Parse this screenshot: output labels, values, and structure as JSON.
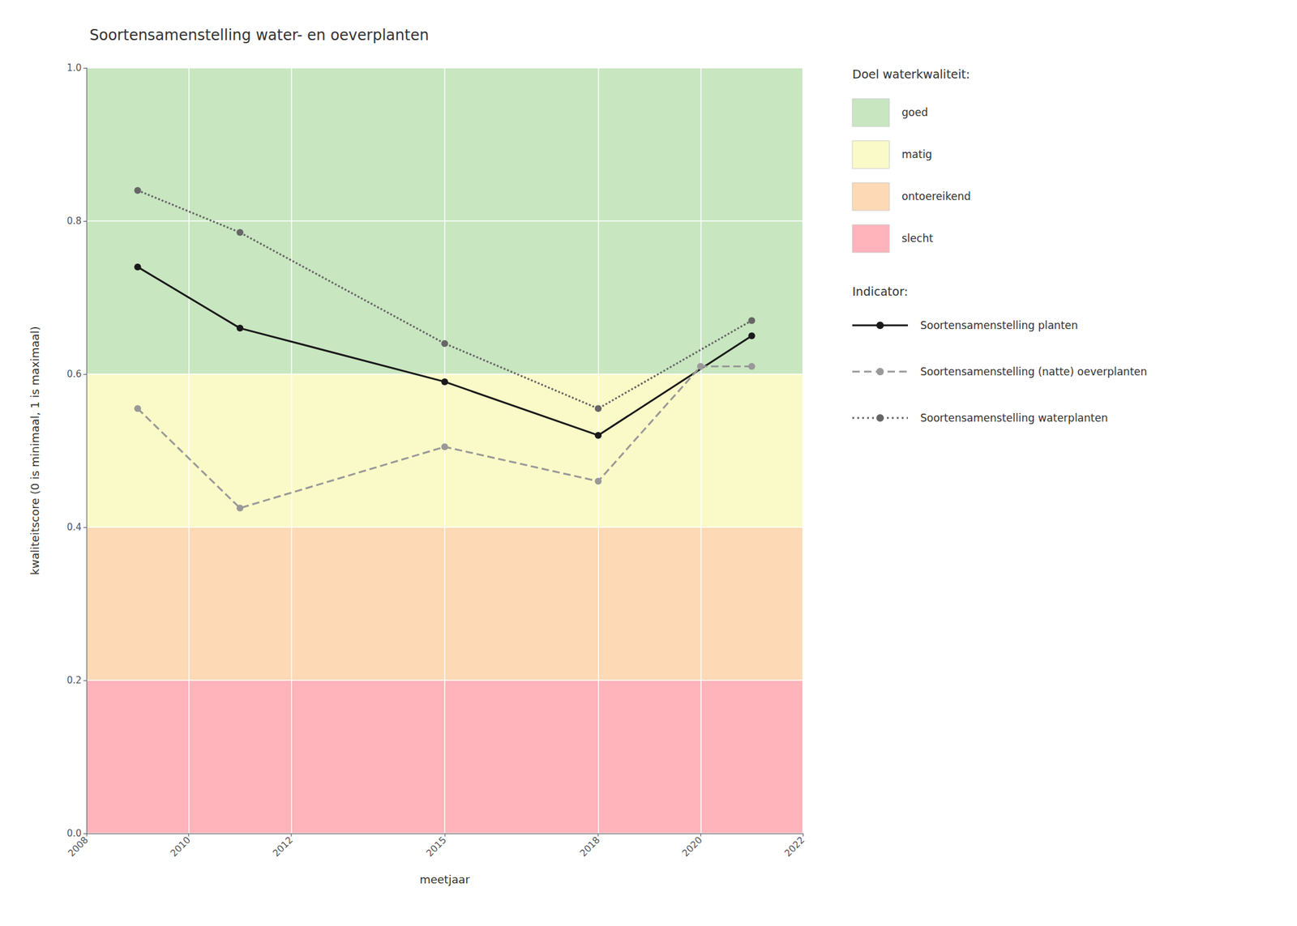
{
  "chart_data": {
    "type": "line",
    "title": "Soortensamenstelling water- en oeverplanten",
    "xlabel": "meetjaar",
    "ylabel": "kwaliteitscore (0 is minimaal, 1 is maximaal)",
    "xlim": [
      2008,
      2022
    ],
    "ylim": [
      0.0,
      1.0
    ],
    "xticks": [
      2008,
      2010,
      2012,
      2015,
      2018,
      2020,
      2022
    ],
    "yticks": [
      {
        "value": 0.0,
        "label": "0.0"
      },
      0.2,
      0.4,
      0.6,
      0.8,
      {
        "value": 1.0,
        "label": "1.0"
      }
    ],
    "grid": true,
    "bands": {
      "title": "Doel waterkwaliteit:",
      "items": [
        {
          "name": "goed",
          "color": "#c8e6c0",
          "ymin": 0.6,
          "ymax": 1.0
        },
        {
          "name": "matig",
          "color": "#fafac8",
          "ymin": 0.4,
          "ymax": 0.6
        },
        {
          "name": "ontoereikend",
          "color": "#fdd9b5",
          "ymin": 0.2,
          "ymax": 0.4
        },
        {
          "name": "slecht",
          "color": "#ffb3ba",
          "ymin": 0.0,
          "ymax": 0.2
        }
      ]
    },
    "series_title": "Indicator:",
    "series": [
      {
        "name": "Soortensamenstelling planten",
        "color": "#1a1a1a",
        "line_style": "solid",
        "marker": "circle",
        "x": [
          2009,
          2011,
          2015,
          2018,
          2021
        ],
        "values": [
          0.74,
          0.66,
          0.59,
          0.52,
          0.65
        ]
      },
      {
        "name": "Soortensamenstelling (natte) oeverplanten",
        "color": "#999999",
        "line_style": "dashed",
        "marker": "circle",
        "x": [
          2009,
          2011,
          2015,
          2018,
          2020,
          2021
        ],
        "values": [
          0.555,
          0.425,
          0.505,
          0.46,
          0.61,
          0.61
        ]
      },
      {
        "name": "Soortensamenstelling waterplanten",
        "color": "#666666",
        "line_style": "dotted",
        "marker": "circle",
        "x": [
          2009,
          2011,
          2015,
          2018,
          2021
        ],
        "values": [
          0.84,
          0.785,
          0.64,
          0.555,
          0.67
        ]
      }
    ]
  }
}
